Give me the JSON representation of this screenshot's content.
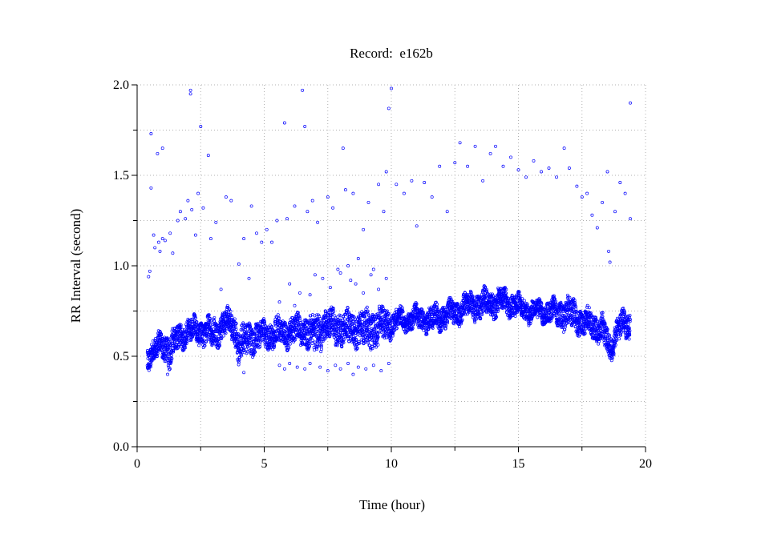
{
  "chart_data": {
    "type": "scatter",
    "title": "Record:  e162b",
    "xlabel": "Time (hour)",
    "ylabel": "RR Interval (second)",
    "xlim": [
      0,
      20
    ],
    "ylim": [
      0,
      2.0
    ],
    "xticks": [
      0,
      5,
      10,
      15,
      20
    ],
    "xtick_labels": [
      "0",
      "5",
      "10",
      "15",
      "20"
    ],
    "yticks": [
      0,
      0.5,
      1.0,
      1.5,
      2.0
    ],
    "ytick_labels": [
      "0.0",
      "0.5",
      "1.0",
      "1.5",
      "2.0"
    ],
    "minor_xticks": [
      2.5,
      7.5,
      12.5,
      17.5
    ],
    "minor_yticks": [
      0.25,
      0.75,
      1.25,
      1.75
    ],
    "grid": true,
    "marker_color": "#0000ff",
    "main_band": {
      "description": "dense RR interval beats, min/max envelope per time",
      "x": [
        0.4,
        0.7,
        1.0,
        1.3,
        1.5,
        2.0,
        2.5,
        3.0,
        3.5,
        3.8,
        4.0,
        4.5,
        5.0,
        5.5,
        6.0,
        6.5,
        7.0,
        7.5,
        8.0,
        8.5,
        9.0,
        9.5,
        10.0,
        10.5,
        11.0,
        11.5,
        12.0,
        12.5,
        13.0,
        13.5,
        14.0,
        14.5,
        15.0,
        15.5,
        16.0,
        16.5,
        17.0,
        17.5,
        18.0,
        18.3,
        18.6,
        18.9,
        19.4
      ],
      "low": [
        0.45,
        0.48,
        0.5,
        0.45,
        0.52,
        0.58,
        0.58,
        0.55,
        0.62,
        0.6,
        0.47,
        0.53,
        0.55,
        0.56,
        0.57,
        0.58,
        0.52,
        0.6,
        0.57,
        0.57,
        0.55,
        0.57,
        0.62,
        0.65,
        0.66,
        0.64,
        0.66,
        0.68,
        0.72,
        0.72,
        0.73,
        0.74,
        0.72,
        0.7,
        0.7,
        0.68,
        0.66,
        0.63,
        0.6,
        0.58,
        0.47,
        0.6,
        0.6
      ],
      "high": [
        0.55,
        0.6,
        0.62,
        0.63,
        0.65,
        0.7,
        0.7,
        0.7,
        0.75,
        0.74,
        0.65,
        0.68,
        0.68,
        0.7,
        0.7,
        0.72,
        0.72,
        0.75,
        0.74,
        0.74,
        0.74,
        0.76,
        0.75,
        0.75,
        0.76,
        0.76,
        0.78,
        0.8,
        0.84,
        0.85,
        0.86,
        0.86,
        0.83,
        0.8,
        0.8,
        0.8,
        0.82,
        0.76,
        0.73,
        0.72,
        0.6,
        0.72,
        0.74
      ],
      "points_per_hour": 260
    },
    "outliers": [
      [
        0.45,
        0.94
      ],
      [
        0.5,
        0.97
      ],
      [
        0.55,
        1.43
      ],
      [
        0.55,
        1.73
      ],
      [
        0.65,
        1.17
      ],
      [
        0.7,
        1.1
      ],
      [
        0.8,
        1.62
      ],
      [
        0.85,
        1.13
      ],
      [
        0.9,
        1.08
      ],
      [
        1.0,
        1.65
      ],
      [
        1.0,
        1.15
      ],
      [
        1.1,
        1.14
      ],
      [
        1.3,
        1.18
      ],
      [
        1.4,
        1.07
      ],
      [
        1.6,
        1.25
      ],
      [
        1.7,
        1.3
      ],
      [
        1.9,
        1.26
      ],
      [
        2.0,
        1.36
      ],
      [
        2.1,
        1.97
      ],
      [
        2.1,
        1.95
      ],
      [
        2.15,
        1.31
      ],
      [
        2.3,
        1.17
      ],
      [
        2.4,
        1.4
      ],
      [
        2.5,
        1.77
      ],
      [
        2.6,
        1.32
      ],
      [
        2.8,
        1.61
      ],
      [
        2.9,
        1.15
      ],
      [
        3.1,
        1.24
      ],
      [
        3.3,
        0.87
      ],
      [
        3.5,
        1.38
      ],
      [
        3.7,
        1.36
      ],
      [
        4.0,
        1.01
      ],
      [
        4.2,
        1.15
      ],
      [
        4.4,
        0.93
      ],
      [
        4.5,
        1.33
      ],
      [
        4.7,
        1.18
      ],
      [
        4.9,
        1.13
      ],
      [
        5.1,
        1.2
      ],
      [
        5.3,
        1.13
      ],
      [
        5.5,
        1.25
      ],
      [
        5.6,
        0.8
      ],
      [
        5.8,
        1.79
      ],
      [
        5.9,
        1.26
      ],
      [
        6.0,
        0.9
      ],
      [
        6.2,
        1.33
      ],
      [
        6.4,
        0.85
      ],
      [
        6.5,
        1.97
      ],
      [
        6.6,
        1.77
      ],
      [
        6.7,
        1.3
      ],
      [
        6.9,
        1.36
      ],
      [
        7.1,
        1.24
      ],
      [
        7.3,
        0.93
      ],
      [
        7.5,
        1.38
      ],
      [
        7.7,
        1.32
      ],
      [
        7.9,
        0.98
      ],
      [
        8.1,
        1.65
      ],
      [
        8.2,
        1.42
      ],
      [
        8.4,
        0.92
      ],
      [
        8.5,
        1.4
      ],
      [
        8.7,
        1.04
      ],
      [
        8.9,
        1.2
      ],
      [
        9.1,
        1.35
      ],
      [
        9.3,
        0.98
      ],
      [
        9.5,
        1.45
      ],
      [
        9.7,
        1.3
      ],
      [
        9.8,
        1.52
      ],
      [
        9.9,
        1.87
      ],
      [
        10.0,
        1.98
      ],
      [
        10.2,
        1.45
      ],
      [
        10.5,
        1.4
      ],
      [
        10.8,
        1.47
      ],
      [
        11.0,
        1.22
      ],
      [
        11.3,
        1.46
      ],
      [
        11.6,
        1.38
      ],
      [
        11.9,
        1.55
      ],
      [
        12.2,
        1.3
      ],
      [
        12.5,
        1.57
      ],
      [
        12.7,
        1.68
      ],
      [
        13.0,
        1.55
      ],
      [
        13.3,
        1.66
      ],
      [
        13.6,
        1.47
      ],
      [
        13.9,
        1.62
      ],
      [
        14.1,
        1.66
      ],
      [
        14.4,
        1.55
      ],
      [
        14.7,
        1.6
      ],
      [
        15.0,
        1.53
      ],
      [
        15.3,
        1.49
      ],
      [
        15.6,
        1.58
      ],
      [
        15.9,
        1.52
      ],
      [
        16.2,
        1.54
      ],
      [
        16.5,
        1.49
      ],
      [
        16.8,
        1.65
      ],
      [
        17.0,
        1.54
      ],
      [
        17.3,
        1.44
      ],
      [
        17.5,
        1.38
      ],
      [
        17.7,
        1.4
      ],
      [
        17.9,
        1.28
      ],
      [
        18.1,
        1.21
      ],
      [
        18.3,
        1.35
      ],
      [
        18.5,
        1.52
      ],
      [
        18.55,
        1.08
      ],
      [
        18.6,
        1.02
      ],
      [
        18.8,
        1.3
      ],
      [
        19.0,
        1.46
      ],
      [
        19.2,
        1.4
      ],
      [
        19.4,
        1.9
      ],
      [
        19.4,
        1.26
      ],
      [
        5.6,
        0.45
      ],
      [
        5.8,
        0.43
      ],
      [
        6.0,
        0.46
      ],
      [
        6.3,
        0.44
      ],
      [
        6.6,
        0.43
      ],
      [
        6.8,
        0.46
      ],
      [
        7.2,
        0.44
      ],
      [
        7.5,
        0.42
      ],
      [
        7.8,
        0.45
      ],
      [
        8.0,
        0.43
      ],
      [
        8.3,
        0.46
      ],
      [
        8.5,
        0.4
      ],
      [
        8.7,
        0.44
      ],
      [
        9.0,
        0.43
      ],
      [
        9.3,
        0.45
      ],
      [
        9.6,
        0.42
      ],
      [
        9.9,
        0.46
      ],
      [
        4.2,
        0.41
      ],
      [
        1.2,
        0.4
      ],
      [
        6.2,
        0.78
      ],
      [
        6.8,
        0.84
      ],
      [
        7.0,
        0.95
      ],
      [
        7.6,
        0.88
      ],
      [
        8.0,
        0.96
      ],
      [
        8.3,
        1.0
      ],
      [
        8.6,
        0.9
      ],
      [
        8.9,
        0.85
      ],
      [
        9.2,
        0.95
      ],
      [
        9.5,
        0.87
      ],
      [
        9.8,
        0.93
      ]
    ]
  }
}
